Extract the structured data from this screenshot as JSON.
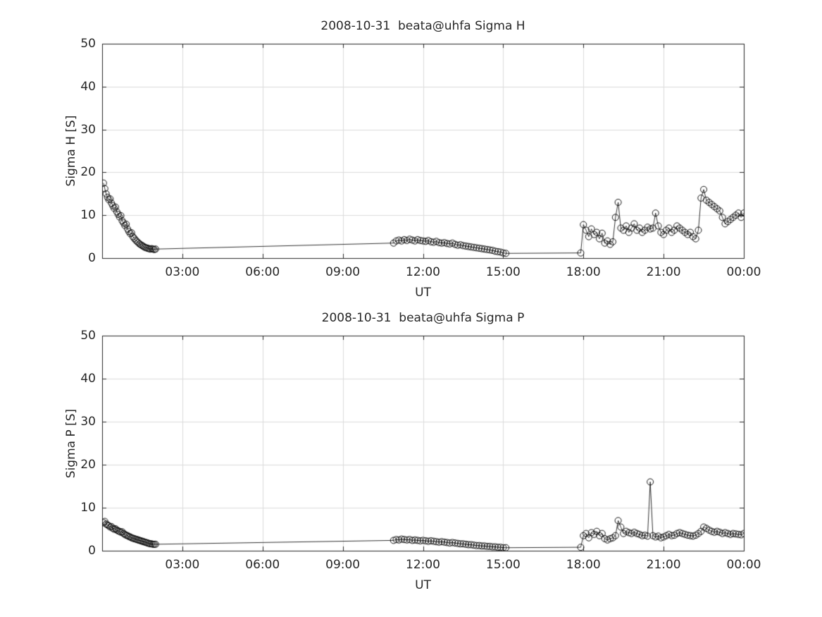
{
  "colors": {
    "background": "#ffffff",
    "axis": "#262626",
    "grid": "#dcdcdc",
    "data": "#000000"
  },
  "chart_data": [
    {
      "type": "line",
      "title": "2008-10-31  beata@uhfa Sigma H",
      "xlabel": "UT",
      "ylabel": "Sigma H [S]",
      "marker": "open-circle",
      "line_color": "#000000",
      "grid": true,
      "xlim": [
        0,
        24
      ],
      "ylim": [
        0,
        50
      ],
      "xticks": [
        3,
        6,
        9,
        12,
        15,
        18,
        21,
        24
      ],
      "xtick_labels": [
        "03:00",
        "06:00",
        "09:00",
        "12:00",
        "15:00",
        "18:00",
        "21:00",
        "00:00"
      ],
      "yticks": [
        0,
        10,
        20,
        30,
        40,
        50
      ],
      "ytick_labels": [
        "0",
        "10",
        "20",
        "30",
        "40",
        "50"
      ],
      "points": [
        [
          0.05,
          17.5
        ],
        [
          0.1,
          16.2
        ],
        [
          0.15,
          15.0
        ],
        [
          0.2,
          14.2
        ],
        [
          0.25,
          13.6
        ],
        [
          0.3,
          13.8
        ],
        [
          0.35,
          12.8
        ],
        [
          0.4,
          12.2
        ],
        [
          0.45,
          11.6
        ],
        [
          0.5,
          11.9
        ],
        [
          0.55,
          10.8
        ],
        [
          0.6,
          10.2
        ],
        [
          0.65,
          9.6
        ],
        [
          0.7,
          9.9
        ],
        [
          0.75,
          8.7
        ],
        [
          0.8,
          8.2
        ],
        [
          0.85,
          7.6
        ],
        [
          0.9,
          7.9
        ],
        [
          0.95,
          6.8
        ],
        [
          1.0,
          6.2
        ],
        [
          1.05,
          5.7
        ],
        [
          1.1,
          5.9
        ],
        [
          1.15,
          5.0
        ],
        [
          1.2,
          4.6
        ],
        [
          1.25,
          4.2
        ],
        [
          1.3,
          3.9
        ],
        [
          1.35,
          3.6
        ],
        [
          1.4,
          3.3
        ],
        [
          1.45,
          3.1
        ],
        [
          1.5,
          2.9
        ],
        [
          1.55,
          2.7
        ],
        [
          1.6,
          2.5
        ],
        [
          1.65,
          2.4
        ],
        [
          1.7,
          2.3
        ],
        [
          1.75,
          2.2
        ],
        [
          1.8,
          2.1
        ],
        [
          1.85,
          2.2
        ],
        [
          1.9,
          2.1
        ],
        [
          1.95,
          2.0
        ],
        [
          2.0,
          2.1
        ],
        [
          10.9,
          3.5
        ],
        [
          11.0,
          4.0
        ],
        [
          11.1,
          4.2
        ],
        [
          11.2,
          4.0
        ],
        [
          11.3,
          4.3
        ],
        [
          11.4,
          4.1
        ],
        [
          11.5,
          4.4
        ],
        [
          11.6,
          4.2
        ],
        [
          11.7,
          4.0
        ],
        [
          11.8,
          4.3
        ],
        [
          11.9,
          4.1
        ],
        [
          12.0,
          4.0
        ],
        [
          12.1,
          3.9
        ],
        [
          12.2,
          4.1
        ],
        [
          12.3,
          3.8
        ],
        [
          12.4,
          3.7
        ],
        [
          12.5,
          3.9
        ],
        [
          12.6,
          3.6
        ],
        [
          12.7,
          3.5
        ],
        [
          12.8,
          3.6
        ],
        [
          12.9,
          3.4
        ],
        [
          13.0,
          3.3
        ],
        [
          13.1,
          3.5
        ],
        [
          13.2,
          3.2
        ],
        [
          13.3,
          3.0
        ],
        [
          13.4,
          3.1
        ],
        [
          13.5,
          2.9
        ],
        [
          13.6,
          2.8
        ],
        [
          13.7,
          2.7
        ],
        [
          13.8,
          2.6
        ],
        [
          13.9,
          2.5
        ],
        [
          14.0,
          2.4
        ],
        [
          14.1,
          2.3
        ],
        [
          14.2,
          2.2
        ],
        [
          14.3,
          2.1
        ],
        [
          14.4,
          2.0
        ],
        [
          14.5,
          1.9
        ],
        [
          14.6,
          1.8
        ],
        [
          14.7,
          1.6
        ],
        [
          14.8,
          1.5
        ],
        [
          14.9,
          1.4
        ],
        [
          15.0,
          1.2
        ],
        [
          15.1,
          1.1
        ],
        [
          17.9,
          1.2
        ],
        [
          18.0,
          7.8
        ],
        [
          18.1,
          6.5
        ],
        [
          18.2,
          5.0
        ],
        [
          18.3,
          6.8
        ],
        [
          18.4,
          5.5
        ],
        [
          18.5,
          6.0
        ],
        [
          18.6,
          4.5
        ],
        [
          18.7,
          5.8
        ],
        [
          18.8,
          3.5
        ],
        [
          18.9,
          4.0
        ],
        [
          19.0,
          3.2
        ],
        [
          19.1,
          3.8
        ],
        [
          19.2,
          9.5
        ],
        [
          19.3,
          13.0
        ],
        [
          19.4,
          7.0
        ],
        [
          19.5,
          6.5
        ],
        [
          19.6,
          7.5
        ],
        [
          19.7,
          6.0
        ],
        [
          19.8,
          7.0
        ],
        [
          19.9,
          8.0
        ],
        [
          20.0,
          6.5
        ],
        [
          20.1,
          7.0
        ],
        [
          20.2,
          6.0
        ],
        [
          20.3,
          6.5
        ],
        [
          20.4,
          7.2
        ],
        [
          20.5,
          6.8
        ],
        [
          20.6,
          7.0
        ],
        [
          20.7,
          10.5
        ],
        [
          20.8,
          7.5
        ],
        [
          20.9,
          6.0
        ],
        [
          21.0,
          5.5
        ],
        [
          21.1,
          6.5
        ],
        [
          21.2,
          7.0
        ],
        [
          21.3,
          6.0
        ],
        [
          21.4,
          6.5
        ],
        [
          21.5,
          7.5
        ],
        [
          21.6,
          7.0
        ],
        [
          21.7,
          6.5
        ],
        [
          21.8,
          6.0
        ],
        [
          21.9,
          5.5
        ],
        [
          22.0,
          6.0
        ],
        [
          22.1,
          5.0
        ],
        [
          22.2,
          4.5
        ],
        [
          22.3,
          6.5
        ],
        [
          22.4,
          14.0
        ],
        [
          22.5,
          16.0
        ],
        [
          22.6,
          13.5
        ],
        [
          22.7,
          13.0
        ],
        [
          22.8,
          12.5
        ],
        [
          22.9,
          12.0
        ],
        [
          23.0,
          11.5
        ],
        [
          23.1,
          11.0
        ],
        [
          23.2,
          9.5
        ],
        [
          23.3,
          8.0
        ],
        [
          23.4,
          8.5
        ],
        [
          23.5,
          9.0
        ],
        [
          23.6,
          9.5
        ],
        [
          23.7,
          10.0
        ],
        [
          23.8,
          10.5
        ],
        [
          23.9,
          9.5
        ],
        [
          24.0,
          10.5
        ]
      ]
    },
    {
      "type": "line",
      "title": "2008-10-31  beata@uhfa Sigma P",
      "xlabel": "UT",
      "ylabel": "Sigma P [S]",
      "marker": "open-circle",
      "line_color": "#000000",
      "grid": true,
      "xlim": [
        0,
        24
      ],
      "ylim": [
        0,
        50
      ],
      "xticks": [
        3,
        6,
        9,
        12,
        15,
        18,
        21,
        24
      ],
      "xtick_labels": [
        "03:00",
        "06:00",
        "09:00",
        "12:00",
        "15:00",
        "18:00",
        "21:00",
        "00:00"
      ],
      "yticks": [
        0,
        10,
        20,
        30,
        40,
        50
      ],
      "ytick_labels": [
        "0",
        "10",
        "20",
        "30",
        "40",
        "50"
      ],
      "points": [
        [
          0.05,
          6.5
        ],
        [
          0.1,
          6.8
        ],
        [
          0.15,
          6.2
        ],
        [
          0.2,
          6.0
        ],
        [
          0.25,
          5.8
        ],
        [
          0.3,
          5.5
        ],
        [
          0.35,
          5.6
        ],
        [
          0.4,
          5.2
        ],
        [
          0.45,
          5.0
        ],
        [
          0.5,
          5.1
        ],
        [
          0.55,
          4.8
        ],
        [
          0.6,
          4.6
        ],
        [
          0.65,
          4.5
        ],
        [
          0.7,
          4.3
        ],
        [
          0.75,
          4.4
        ],
        [
          0.8,
          4.0
        ],
        [
          0.85,
          3.8
        ],
        [
          0.9,
          3.6
        ],
        [
          0.95,
          3.5
        ],
        [
          1.0,
          3.3
        ],
        [
          1.05,
          3.2
        ],
        [
          1.1,
          3.0
        ],
        [
          1.15,
          2.9
        ],
        [
          1.2,
          2.8
        ],
        [
          1.25,
          2.7
        ],
        [
          1.3,
          2.6
        ],
        [
          1.35,
          2.5
        ],
        [
          1.4,
          2.4
        ],
        [
          1.45,
          2.3
        ],
        [
          1.5,
          2.2
        ],
        [
          1.55,
          2.1
        ],
        [
          1.6,
          2.0
        ],
        [
          1.65,
          1.9
        ],
        [
          1.7,
          1.8
        ],
        [
          1.75,
          1.7
        ],
        [
          1.8,
          1.6
        ],
        [
          1.85,
          1.6
        ],
        [
          1.9,
          1.5
        ],
        [
          1.95,
          1.5
        ],
        [
          2.0,
          1.5
        ],
        [
          10.9,
          2.4
        ],
        [
          11.0,
          2.6
        ],
        [
          11.1,
          2.5
        ],
        [
          11.2,
          2.7
        ],
        [
          11.3,
          2.6
        ],
        [
          11.4,
          2.5
        ],
        [
          11.5,
          2.6
        ],
        [
          11.6,
          2.4
        ],
        [
          11.7,
          2.5
        ],
        [
          11.8,
          2.4
        ],
        [
          11.9,
          2.3
        ],
        [
          12.0,
          2.4
        ],
        [
          12.1,
          2.3
        ],
        [
          12.2,
          2.2
        ],
        [
          12.3,
          2.3
        ],
        [
          12.4,
          2.2
        ],
        [
          12.5,
          2.1
        ],
        [
          12.6,
          2.0
        ],
        [
          12.7,
          2.1
        ],
        [
          12.8,
          2.0
        ],
        [
          12.9,
          1.9
        ],
        [
          13.0,
          1.8
        ],
        [
          13.1,
          1.9
        ],
        [
          13.2,
          1.8
        ],
        [
          13.3,
          1.7
        ],
        [
          13.4,
          1.6
        ],
        [
          13.5,
          1.6
        ],
        [
          13.6,
          1.5
        ],
        [
          13.7,
          1.4
        ],
        [
          13.8,
          1.4
        ],
        [
          13.9,
          1.3
        ],
        [
          14.0,
          1.2
        ],
        [
          14.1,
          1.2
        ],
        [
          14.2,
          1.1
        ],
        [
          14.3,
          1.1
        ],
        [
          14.4,
          1.0
        ],
        [
          14.5,
          1.0
        ],
        [
          14.6,
          0.9
        ],
        [
          14.7,
          0.9
        ],
        [
          14.8,
          0.8
        ],
        [
          14.9,
          0.8
        ],
        [
          15.0,
          0.7
        ],
        [
          15.1,
          0.7
        ],
        [
          17.9,
          0.8
        ],
        [
          18.0,
          3.5
        ],
        [
          18.1,
          4.0
        ],
        [
          18.2,
          3.0
        ],
        [
          18.3,
          4.2
        ],
        [
          18.4,
          3.8
        ],
        [
          18.5,
          4.5
        ],
        [
          18.6,
          3.5
        ],
        [
          18.7,
          4.0
        ],
        [
          18.8,
          2.8
        ],
        [
          18.9,
          2.5
        ],
        [
          19.0,
          2.8
        ],
        [
          19.1,
          3.0
        ],
        [
          19.2,
          3.5
        ],
        [
          19.3,
          7.0
        ],
        [
          19.4,
          5.5
        ],
        [
          19.5,
          4.0
        ],
        [
          19.6,
          4.5
        ],
        [
          19.7,
          4.2
        ],
        [
          19.8,
          4.0
        ],
        [
          19.9,
          4.3
        ],
        [
          20.0,
          4.0
        ],
        [
          20.1,
          3.8
        ],
        [
          20.2,
          3.5
        ],
        [
          20.3,
          3.6
        ],
        [
          20.4,
          3.4
        ],
        [
          20.5,
          16.0
        ],
        [
          20.6,
          3.5
        ],
        [
          20.7,
          3.2
        ],
        [
          20.8,
          3.4
        ],
        [
          20.9,
          3.0
        ],
        [
          21.0,
          3.2
        ],
        [
          21.1,
          3.5
        ],
        [
          21.2,
          3.8
        ],
        [
          21.3,
          3.5
        ],
        [
          21.4,
          3.6
        ],
        [
          21.5,
          4.0
        ],
        [
          21.6,
          4.2
        ],
        [
          21.7,
          4.0
        ],
        [
          21.8,
          3.8
        ],
        [
          21.9,
          3.6
        ],
        [
          22.0,
          3.5
        ],
        [
          22.1,
          3.4
        ],
        [
          22.2,
          3.6
        ],
        [
          22.3,
          4.0
        ],
        [
          22.4,
          4.5
        ],
        [
          22.5,
          5.5
        ],
        [
          22.6,
          5.2
        ],
        [
          22.7,
          4.8
        ],
        [
          22.8,
          4.5
        ],
        [
          22.9,
          4.3
        ],
        [
          23.0,
          4.5
        ],
        [
          23.1,
          4.3
        ],
        [
          23.2,
          4.0
        ],
        [
          23.3,
          4.2
        ],
        [
          23.4,
          4.0
        ],
        [
          23.5,
          3.8
        ],
        [
          23.6,
          4.0
        ],
        [
          23.7,
          3.9
        ],
        [
          23.8,
          3.8
        ],
        [
          23.9,
          3.7
        ],
        [
          24.0,
          4.0
        ]
      ]
    }
  ]
}
